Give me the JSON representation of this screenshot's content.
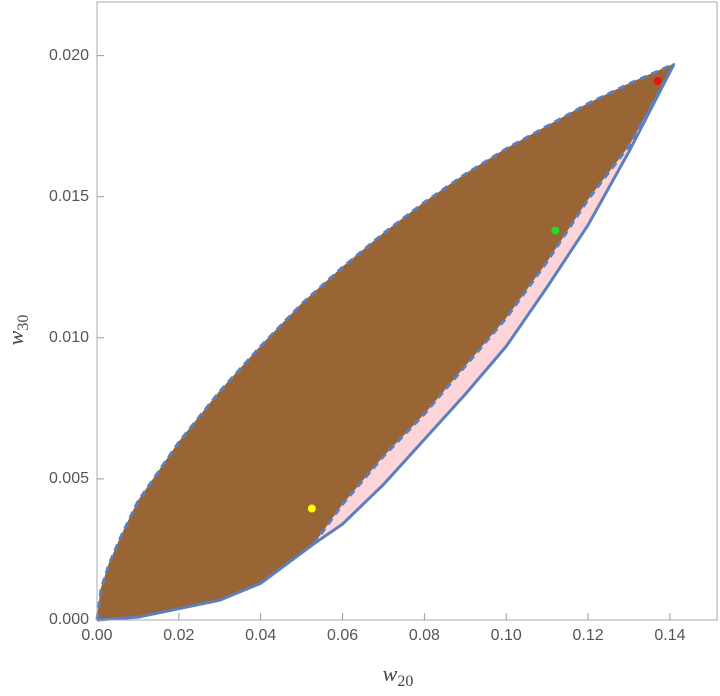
{
  "chart_data": {
    "type": "region",
    "x_label": {
      "base": "w",
      "sub": "20"
    },
    "y_label": {
      "base": "w",
      "sub": "30"
    },
    "xlim": [
      0,
      0.1515
    ],
    "ylim": [
      0,
      0.0219
    ],
    "xticks": [
      {
        "value": 0,
        "label": "0.00"
      },
      {
        "value": 0.02,
        "label": "0.02"
      },
      {
        "value": 0.04,
        "label": "0.04"
      },
      {
        "value": 0.06,
        "label": "0.06"
      },
      {
        "value": 0.08,
        "label": "0.08"
      },
      {
        "value": 0.1,
        "label": "0.10"
      },
      {
        "value": 0.12,
        "label": "0.12"
      },
      {
        "value": 0.14,
        "label": "0.14"
      }
    ],
    "yticks": [
      {
        "value": 0,
        "label": "0.000"
      },
      {
        "value": 0.005,
        "label": "0.005"
      },
      {
        "value": 0.01,
        "label": "0.010"
      },
      {
        "value": 0.015,
        "label": "0.015"
      },
      {
        "value": 0.02,
        "label": "0.020"
      }
    ],
    "outer_fill": "#9a6534",
    "inner_fill": "#fdd5d9",
    "curves": {
      "upper": {
        "color": "#5b7fbf",
        "dashed": true,
        "x": [
          0,
          0.001,
          0.003,
          0.006,
          0.01,
          0.02,
          0.03,
          0.04,
          0.05,
          0.06,
          0.07,
          0.08,
          0.09,
          0.1,
          0.11,
          0.12,
          0.13,
          0.141
        ],
        "y": [
          0,
          0.0011,
          0.002,
          0.003,
          0.0042,
          0.0063,
          0.0081,
          0.0097,
          0.0112,
          0.0125,
          0.0137,
          0.0148,
          0.0158,
          0.0167,
          0.0175,
          0.0183,
          0.019,
          0.0197
        ]
      },
      "inner": {
        "color": "#5b7fbf",
        "dashed": true,
        "x": [
          0.053,
          0.06,
          0.07,
          0.08,
          0.09,
          0.1,
          0.11,
          0.12,
          0.13,
          0.141
        ],
        "y": [
          0.0027,
          0.0041,
          0.0058,
          0.0073,
          0.009,
          0.0107,
          0.0127,
          0.0149,
          0.0168,
          0.0197
        ]
      },
      "lower": {
        "color": "#5b7fbf",
        "dashed": false,
        "x": [
          0,
          0.01,
          0.02,
          0.03,
          0.04,
          0.053,
          0.06,
          0.07,
          0.08,
          0.09,
          0.1,
          0.11,
          0.12,
          0.13,
          0.141
        ],
        "y": [
          0,
          0.0001,
          0.0004,
          0.0007,
          0.0013,
          0.0027,
          0.0034,
          0.0048,
          0.0064,
          0.008,
          0.0097,
          0.0118,
          0.014,
          0.0166,
          0.0197
        ]
      }
    },
    "points": [
      {
        "x": 0.0525,
        "y": 0.00395,
        "color": "#ffff00"
      },
      {
        "x": 0.112,
        "y": 0.0138,
        "color": "#22dd22"
      },
      {
        "x": 0.137,
        "y": 0.0191,
        "color": "#ee1111"
      }
    ]
  }
}
